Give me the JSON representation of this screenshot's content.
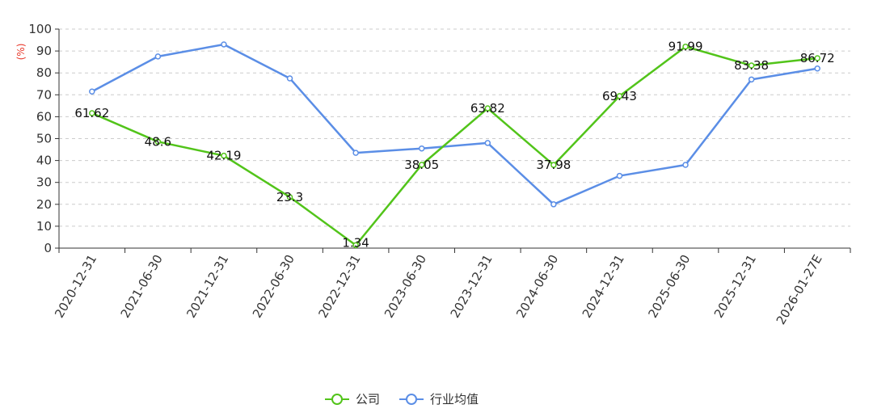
{
  "chart_data": {
    "type": "line",
    "title": "",
    "xlabel": "",
    "ylabel": "(%)",
    "ylim": [
      0,
      100
    ],
    "yticks": [
      0,
      10,
      20,
      30,
      40,
      50,
      60,
      70,
      80,
      90,
      100
    ],
    "grid": "horizontal dashed",
    "legend_position": "bottom-center",
    "categories": [
      "2020-12-31",
      "2021-06-30",
      "2021-12-31",
      "2022-06-30",
      "2022-12-31",
      "2023-06-30",
      "2023-12-31",
      "2024-06-30",
      "2024-12-31",
      "2025-06-30",
      "2025-12-31",
      "2026-01-27E"
    ],
    "series": [
      {
        "name": "公司",
        "color": "#52c41a",
        "values": [
          61.62,
          48.6,
          42.19,
          23.3,
          1.34,
          38.05,
          63.82,
          37.98,
          69.43,
          91.99,
          83.38,
          86.72
        ],
        "labels": [
          "61.62",
          "48.6",
          "42.19",
          "23.3",
          "1.34",
          "38.05",
          "63.82",
          "37.98",
          "69.43",
          "91.99",
          "83.38",
          "86.72"
        ]
      },
      {
        "name": "行业均值",
        "color": "#5b8ee6",
        "values": [
          71.5,
          87.5,
          93.0,
          77.5,
          43.5,
          45.5,
          48.0,
          20.0,
          33.0,
          38.0,
          77.0,
          82.0
        ]
      }
    ],
    "unit_color": "#e8382b"
  }
}
